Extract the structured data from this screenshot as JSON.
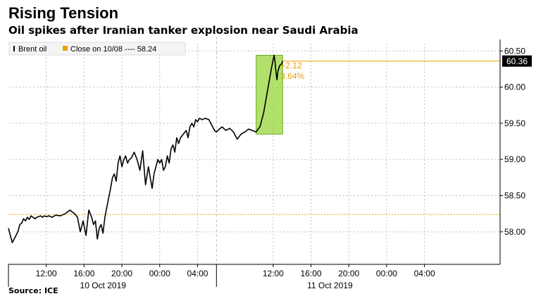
{
  "header": {
    "title": "Rising Tension",
    "subtitle": "Oil spikes after Iranian tanker explosion near Saudi Arabia",
    "source": "Source: ICE"
  },
  "colors": {
    "series": "#000000",
    "reference": "#f0a000",
    "highlight_fill": "#9ad63c",
    "highlight_stroke": "#66aa22",
    "grid": "#bfbfbf",
    "last_tag_bg": "#000000",
    "last_tag_text": "#ffffff"
  },
  "chart_data": {
    "type": "line",
    "title": "Rising Tension",
    "subtitle": "Oil spikes after Iranian tanker explosion near Saudi Arabia",
    "ylim": [
      57.55,
      60.6
    ],
    "y_ticks": [
      58.0,
      58.5,
      59.0,
      59.5,
      60.0,
      60.5
    ],
    "y_tick_labels": [
      "58.00",
      "58.50",
      "59.00",
      "59.50",
      "60.00",
      "60.50"
    ],
    "xlim_hours": [
      8.0,
      60.0
    ],
    "x_ticks_hours": [
      12,
      16,
      20,
      24,
      28,
      36,
      40,
      44,
      48,
      52
    ],
    "x_tick_labels": [
      "12:00",
      "16:00",
      "20:00",
      "00:00",
      "04:00",
      "12:00",
      "16:00",
      "20:00",
      "00:00",
      "04:00"
    ],
    "day_labels": [
      {
        "label": "10 Oct 2019",
        "hour": 18
      },
      {
        "label": "11 Oct 2019",
        "hour": 42
      }
    ],
    "day_separator_hour": 30,
    "grid": true,
    "legend": {
      "placement": "top-left",
      "items": [
        {
          "label": "Brent oil"
        },
        {
          "label": "Close on 10/08 ---- 58.24"
        }
      ]
    },
    "reference_line": {
      "value": 58.24
    },
    "last_value": {
      "label": "60.36",
      "value": 60.36
    },
    "highlight": {
      "x_range_hours": [
        34.2,
        37.0
      ],
      "y_range": [
        59.35,
        60.44
      ],
      "annotation": [
        "+2.12",
        "3.64%"
      ]
    },
    "series": [
      {
        "name": "Brent oil",
        "x_hours": [
          8.0,
          8.2,
          8.4,
          8.6,
          8.8,
          9.0,
          9.2,
          9.4,
          9.6,
          9.8,
          10.0,
          10.2,
          10.4,
          10.6,
          10.8,
          11.0,
          11.2,
          11.4,
          11.6,
          11.8,
          12.0,
          12.3,
          12.6,
          13.0,
          13.5,
          14.0,
          14.5,
          15.0,
          15.3,
          15.6,
          15.9,
          16.2,
          16.5,
          16.8,
          17.0,
          17.2,
          17.4,
          17.6,
          17.8,
          18.0,
          18.2,
          18.5,
          18.8,
          19.0,
          19.2,
          19.4,
          19.6,
          19.8,
          20.0,
          20.2,
          20.4,
          20.6,
          20.8,
          21.0,
          21.3,
          21.6,
          21.9,
          22.2,
          22.5,
          22.8,
          23.0,
          23.2,
          23.4,
          23.6,
          23.8,
          24.0,
          24.2,
          24.4,
          24.6,
          24.8,
          25.0,
          25.2,
          25.4,
          25.6,
          25.8,
          26.0,
          26.2,
          26.5,
          26.8,
          27.0,
          27.2,
          27.4,
          27.6,
          27.8,
          28.0,
          28.2,
          28.5,
          28.8,
          29.0,
          29.2,
          29.4,
          29.6,
          29.8,
          30.0,
          30.3,
          30.6,
          31.0,
          31.4,
          31.8,
          32.2,
          32.6,
          33.0,
          33.4,
          33.8,
          34.2,
          34.4,
          34.6,
          34.8,
          35.0,
          35.2,
          35.4,
          35.6,
          35.8,
          36.0,
          36.1,
          36.2,
          36.3,
          36.4,
          36.5,
          36.7,
          36.9,
          37.0
        ],
        "values": [
          58.05,
          57.95,
          57.85,
          57.9,
          57.95,
          58.0,
          58.1,
          58.12,
          58.18,
          58.15,
          58.2,
          58.17,
          58.22,
          58.2,
          58.18,
          58.2,
          58.21,
          58.22,
          58.2,
          58.22,
          58.21,
          58.22,
          58.2,
          58.23,
          58.22,
          58.25,
          58.3,
          58.25,
          58.2,
          58.0,
          58.15,
          57.95,
          58.3,
          58.2,
          58.1,
          58.15,
          57.9,
          58.05,
          58.1,
          57.98,
          58.2,
          58.4,
          58.6,
          58.75,
          58.8,
          58.7,
          58.95,
          59.05,
          58.9,
          59.0,
          59.05,
          58.95,
          59.0,
          59.02,
          59.1,
          59.0,
          58.85,
          59.12,
          58.65,
          58.9,
          58.75,
          58.6,
          58.8,
          58.9,
          59.0,
          58.95,
          59.0,
          58.85,
          58.9,
          59.05,
          58.95,
          59.15,
          59.2,
          59.1,
          59.3,
          59.22,
          59.3,
          59.35,
          59.4,
          59.3,
          59.45,
          59.5,
          59.45,
          59.55,
          59.52,
          59.57,
          59.55,
          59.57,
          59.56,
          59.55,
          59.5,
          59.45,
          59.4,
          59.38,
          59.42,
          59.45,
          59.4,
          59.43,
          59.38,
          59.28,
          59.35,
          59.38,
          59.42,
          59.4,
          59.38,
          59.42,
          59.45,
          59.55,
          59.65,
          59.8,
          59.95,
          60.1,
          60.25,
          60.38,
          60.44,
          60.35,
          60.2,
          60.1,
          60.22,
          60.3,
          60.32,
          60.36
        ]
      }
    ]
  }
}
